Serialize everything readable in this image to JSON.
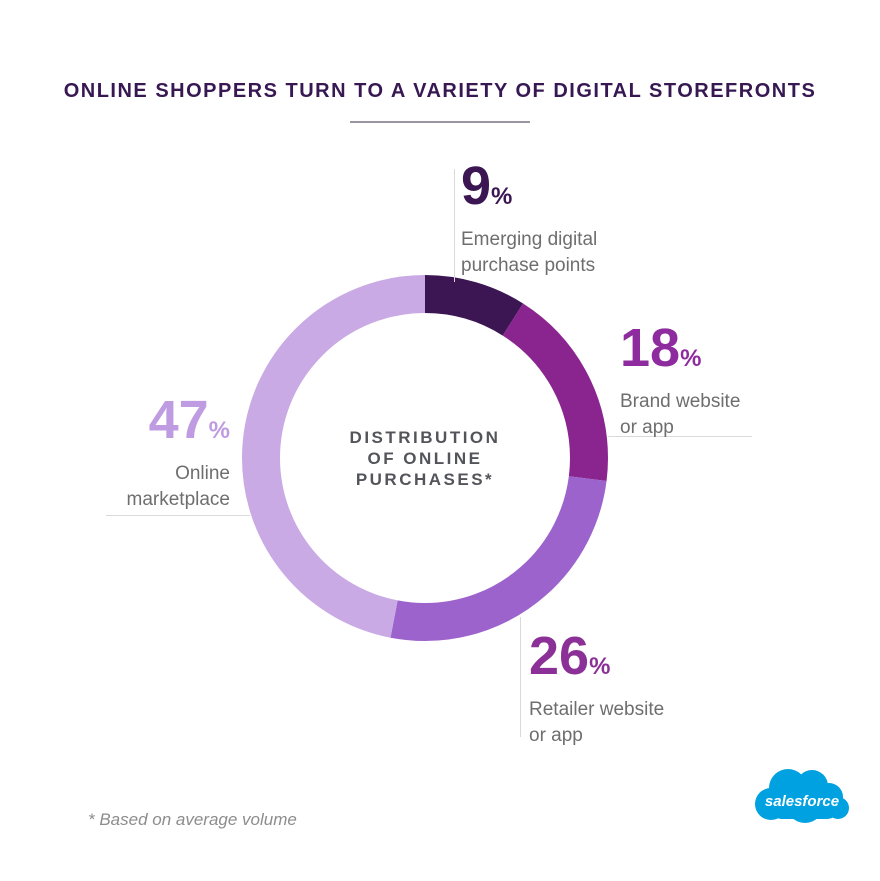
{
  "header": {
    "title": "ONLINE SHOPPERS TURN TO A VARIETY OF DIGITAL STOREFRONTS"
  },
  "chart_data": {
    "type": "pie",
    "subtype": "donut",
    "title": "DISTRIBUTION OF ONLINE PURCHASES*",
    "center_label_lines": [
      "DISTRIBUTION",
      "OF ONLINE",
      "PURCHASES*"
    ],
    "unit": "%",
    "start_angle_deg": 0,
    "direction": "clockwise",
    "segments": [
      {
        "label": "Emerging digital purchase points",
        "label_lines": [
          "Emerging digital",
          "purchase points"
        ],
        "value": 9,
        "color": "#3b1653",
        "number_color": "#3b1653"
      },
      {
        "label": "Brand website or app",
        "label_lines": [
          "Brand website",
          "or app"
        ],
        "value": 18,
        "color": "#8a2590",
        "number_color": "#8e2b9e"
      },
      {
        "label": "Retailer website or app",
        "label_lines": [
          "Retailer website",
          "or app"
        ],
        "value": 26,
        "color": "#9c63cc",
        "number_color": "#8b3097"
      },
      {
        "label": "Online marketplace",
        "label_lines": [
          "Online",
          "marketplace"
        ],
        "value": 47,
        "color": "#c9aae4",
        "number_color": "#bf9ce2"
      }
    ]
  },
  "footnote": "* Based on average volume",
  "logo": {
    "text": "salesforce",
    "color": "#00a1e0",
    "text_color": "#ffffff"
  }
}
